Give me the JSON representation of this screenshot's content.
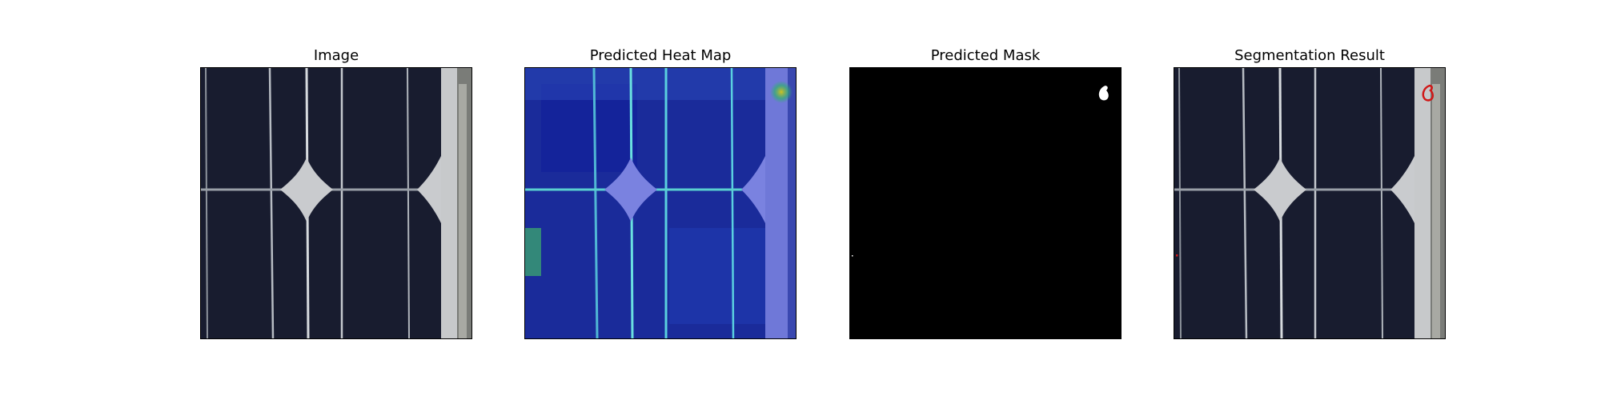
{
  "figure": {
    "panels": [
      {
        "title": "Image",
        "icon": "solar-cell-photo"
      },
      {
        "title": "Predicted Heat Map",
        "icon": "heatmap-overlay"
      },
      {
        "title": "Predicted Mask",
        "icon": "binary-mask"
      },
      {
        "title": "Segmentation Result",
        "icon": "segmentation-overlay"
      }
    ]
  },
  "colors": {
    "cell_background": "#15182a",
    "busbar": "#9aa0a8",
    "heat_low": "#1a2fa0",
    "heat_high": "#2fd0c0",
    "mask_background": "#000000",
    "mask_foreground": "#ffffff",
    "defect_outline": "#d01818"
  }
}
